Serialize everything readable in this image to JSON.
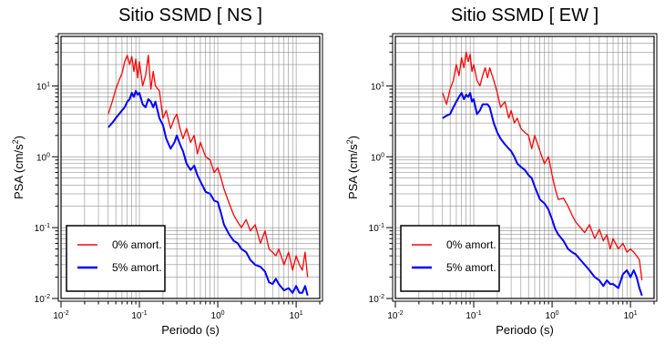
{
  "chart_data": [
    {
      "type": "line",
      "title": "Sitio SSMD [ NS ]",
      "xlabel": "Periodo (s)",
      "ylabel_base": "PSA (cm/s",
      "ylabel_sup": "2",
      "ylabel_close": ")",
      "xscale": "log",
      "yscale": "log",
      "xlim": [
        0.01,
        20
      ],
      "ylim": [
        0.01,
        50
      ],
      "grid": true,
      "legend_position": "bottom-left",
      "x_ticks": [
        {
          "base": "10",
          "exp": "-2",
          "value": 0.01
        },
        {
          "base": "10",
          "exp": "-1",
          "value": 0.1
        },
        {
          "base": "10",
          "exp": "0",
          "value": 1
        },
        {
          "base": "10",
          "exp": "1",
          "value": 10
        }
      ],
      "y_ticks": [
        {
          "base": "10",
          "exp": "-2",
          "value": 0.01
        },
        {
          "base": "10",
          "exp": "-1",
          "value": 0.1
        },
        {
          "base": "10",
          "exp": "0",
          "value": 1
        },
        {
          "base": "10",
          "exp": "1",
          "value": 10
        }
      ],
      "series": [
        {
          "name": "0% amort.",
          "color": "#ff0000",
          "x": [
            0.04,
            0.045,
            0.05,
            0.055,
            0.06,
            0.065,
            0.07,
            0.075,
            0.08,
            0.085,
            0.09,
            0.095,
            0.1,
            0.11,
            0.12,
            0.13,
            0.14,
            0.15,
            0.16,
            0.18,
            0.2,
            0.22,
            0.25,
            0.28,
            0.3,
            0.33,
            0.36,
            0.4,
            0.45,
            0.5,
            0.55,
            0.6,
            0.7,
            0.8,
            0.9,
            1.0,
            1.1,
            1.2,
            1.4,
            1.6,
            1.8,
            2.0,
            2.3,
            2.6,
            3.0,
            3.5,
            4.0,
            4.5,
            5.0,
            5.5,
            6.0,
            7.0,
            8.0,
            9.0,
            10.0,
            11.0,
            12.0,
            13.0,
            14.0
          ],
          "y": [
            4.0,
            6.0,
            9.0,
            12.0,
            15.0,
            22.0,
            27.0,
            20.0,
            26.0,
            16.0,
            24.0,
            13.0,
            22.0,
            10.0,
            14.0,
            27.0,
            9.0,
            16.0,
            10.0,
            8.5,
            3.5,
            4.5,
            2.5,
            3.5,
            4.0,
            2.5,
            1.8,
            2.5,
            1.6,
            2.0,
            1.1,
            1.6,
            1.0,
            0.9,
            0.6,
            0.7,
            0.5,
            0.35,
            0.22,
            0.15,
            0.12,
            0.1,
            0.13,
            0.09,
            0.11,
            0.06,
            0.09,
            0.05,
            0.045,
            0.04,
            0.05,
            0.03,
            0.045,
            0.025,
            0.04,
            0.03,
            0.025,
            0.045,
            0.02
          ]
        },
        {
          "name": "5% amort.",
          "color": "#0000ff",
          "x": [
            0.04,
            0.045,
            0.05,
            0.055,
            0.06,
            0.065,
            0.07,
            0.075,
            0.08,
            0.085,
            0.09,
            0.095,
            0.1,
            0.11,
            0.12,
            0.13,
            0.14,
            0.15,
            0.16,
            0.18,
            0.2,
            0.22,
            0.25,
            0.28,
            0.3,
            0.33,
            0.36,
            0.4,
            0.45,
            0.5,
            0.55,
            0.6,
            0.7,
            0.8,
            0.9,
            1.0,
            1.1,
            1.2,
            1.4,
            1.6,
            1.8,
            2.0,
            2.3,
            2.6,
            3.0,
            3.5,
            4.0,
            4.5,
            5.0,
            5.5,
            6.0,
            7.0,
            8.0,
            9.0,
            10.0,
            11.0,
            12.0,
            13.0,
            14.0
          ],
          "y": [
            2.6,
            3.0,
            3.5,
            4.0,
            4.5,
            5.0,
            6.0,
            6.5,
            8.0,
            7.0,
            8.5,
            7.5,
            8.0,
            5.5,
            5.0,
            6.5,
            6.0,
            5.0,
            6.0,
            3.5,
            2.8,
            1.8,
            1.3,
            1.6,
            2.0,
            1.5,
            1.2,
            0.8,
            0.65,
            0.75,
            0.55,
            0.45,
            0.32,
            0.3,
            0.24,
            0.23,
            0.16,
            0.11,
            0.08,
            0.065,
            0.06,
            0.05,
            0.045,
            0.035,
            0.03,
            0.028,
            0.024,
            0.017,
            0.016,
            0.019,
            0.016,
            0.013,
            0.014,
            0.012,
            0.015,
            0.012,
            0.012,
            0.015,
            0.011
          ]
        }
      ]
    },
    {
      "type": "line",
      "title": "Sitio SSMD [ EW ]",
      "xlabel": "Periodo (s)",
      "ylabel_base": "PSA (cm/s",
      "ylabel_sup": "2",
      "ylabel_close": ")",
      "xscale": "log",
      "yscale": "log",
      "xlim": [
        0.01,
        20
      ],
      "ylim": [
        0.01,
        50
      ],
      "grid": true,
      "legend_position": "bottom-left",
      "x_ticks": [
        {
          "base": "10",
          "exp": "-2",
          "value": 0.01
        },
        {
          "base": "10",
          "exp": "-1",
          "value": 0.1
        },
        {
          "base": "10",
          "exp": "0",
          "value": 1
        },
        {
          "base": "10",
          "exp": "1",
          "value": 10
        }
      ],
      "y_ticks": [
        {
          "base": "10",
          "exp": "-2",
          "value": 0.01
        },
        {
          "base": "10",
          "exp": "-1",
          "value": 0.1
        },
        {
          "base": "10",
          "exp": "0",
          "value": 1
        },
        {
          "base": "10",
          "exp": "1",
          "value": 10
        }
      ],
      "series": [
        {
          "name": "0% amort.",
          "color": "#ff0000",
          "x": [
            0.04,
            0.045,
            0.05,
            0.055,
            0.06,
            0.065,
            0.07,
            0.075,
            0.08,
            0.085,
            0.09,
            0.095,
            0.1,
            0.11,
            0.12,
            0.13,
            0.14,
            0.15,
            0.16,
            0.18,
            0.2,
            0.22,
            0.25,
            0.28,
            0.3,
            0.33,
            0.36,
            0.4,
            0.45,
            0.5,
            0.55,
            0.6,
            0.7,
            0.8,
            0.9,
            1.0,
            1.1,
            1.2,
            1.4,
            1.6,
            1.8,
            2.0,
            2.3,
            2.6,
            3.0,
            3.5,
            4.0,
            4.5,
            5.0,
            5.5,
            6.0,
            7.0,
            8.0,
            9.0,
            10.0,
            11.0,
            12.0,
            13.0,
            14.0
          ],
          "y": [
            8.0,
            5.5,
            9.0,
            12.0,
            20.0,
            14.0,
            25.0,
            18.0,
            30.0,
            22.0,
            28.0,
            16.0,
            20.0,
            12.0,
            10.0,
            14.0,
            18.0,
            13.0,
            18.0,
            12.0,
            8.0,
            5.0,
            6.0,
            3.5,
            4.5,
            3.0,
            3.5,
            2.5,
            2.2,
            2.0,
            1.3,
            2.0,
            1.2,
            0.8,
            1.0,
            0.55,
            0.35,
            0.25,
            0.26,
            0.2,
            0.15,
            0.12,
            0.1,
            0.085,
            0.11,
            0.07,
            0.095,
            0.065,
            0.08,
            0.05,
            0.07,
            0.05,
            0.06,
            0.045,
            0.05,
            0.045,
            0.04,
            0.035,
            0.018
          ]
        },
        {
          "name": "5% amort.",
          "color": "#0000ff",
          "x": [
            0.04,
            0.045,
            0.05,
            0.055,
            0.06,
            0.065,
            0.07,
            0.075,
            0.08,
            0.085,
            0.09,
            0.095,
            0.1,
            0.11,
            0.12,
            0.13,
            0.14,
            0.15,
            0.16,
            0.18,
            0.2,
            0.22,
            0.25,
            0.28,
            0.3,
            0.33,
            0.36,
            0.4,
            0.45,
            0.5,
            0.55,
            0.6,
            0.7,
            0.8,
            0.9,
            1.0,
            1.1,
            1.2,
            1.4,
            1.6,
            1.8,
            2.0,
            2.3,
            2.6,
            3.0,
            3.5,
            4.0,
            4.5,
            5.0,
            5.5,
            6.0,
            7.0,
            8.0,
            9.0,
            10.0,
            11.0,
            12.0,
            13.0,
            14.0
          ],
          "y": [
            3.5,
            3.8,
            4.0,
            5.0,
            6.0,
            7.0,
            8.0,
            6.5,
            7.5,
            7.0,
            8.0,
            6.0,
            6.5,
            4.0,
            4.5,
            5.5,
            5.5,
            5.5,
            5.0,
            3.0,
            2.2,
            1.8,
            1.5,
            1.3,
            1.2,
            1.0,
            0.8,
            0.72,
            0.65,
            0.55,
            0.5,
            0.38,
            0.25,
            0.22,
            0.18,
            0.13,
            0.095,
            0.08,
            0.065,
            0.05,
            0.045,
            0.042,
            0.035,
            0.03,
            0.025,
            0.02,
            0.018,
            0.015,
            0.018,
            0.016,
            0.016,
            0.014,
            0.022,
            0.025,
            0.02,
            0.025,
            0.02,
            0.014,
            0.011
          ]
        }
      ]
    }
  ]
}
